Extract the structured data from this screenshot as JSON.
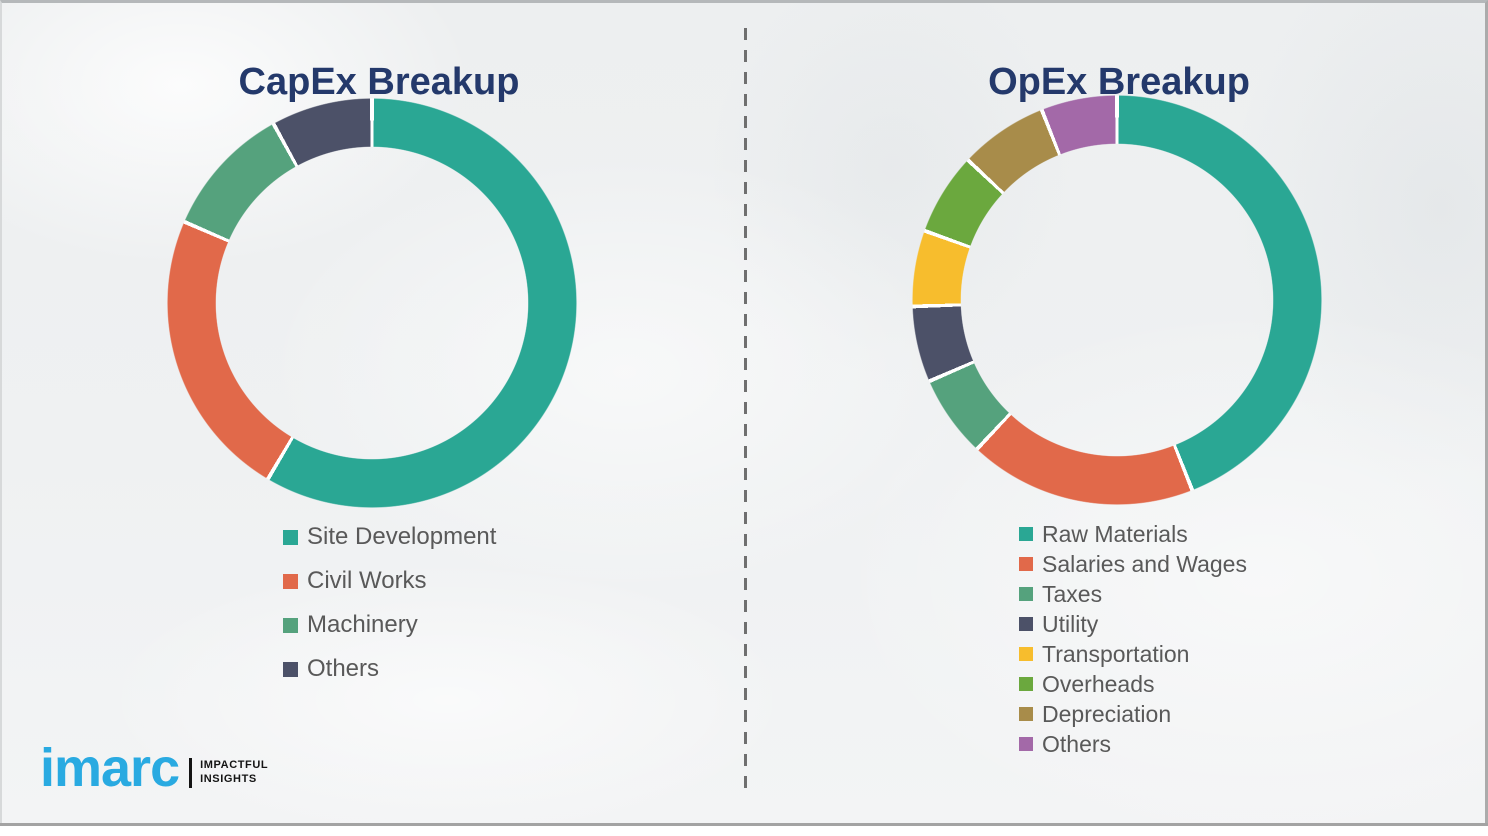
{
  "chart_data": [
    {
      "type": "pie",
      "subtype": "donut",
      "title": "CapEx Breakup",
      "labels": [
        "Site Development",
        "Civil Works",
        "Machinery",
        "Others"
      ],
      "values": [
        58.5,
        23,
        10.5,
        8
      ],
      "unit": "percent-estimated-from-arc-angles",
      "colors": [
        "#2AA794",
        "#E1694A",
        "#55A27D",
        "#4C5168"
      ],
      "start_angle_deg": 0,
      "direction": "clockwise",
      "data_labels_shown": false,
      "legend_position": "below-chart-left"
    },
    {
      "type": "pie",
      "subtype": "donut",
      "title": "OpEx Breakup",
      "labels": [
        "Raw Materials",
        "Salaries and Wages",
        "Taxes",
        "Utility",
        "Transportation",
        "Overheads",
        "Depreciation",
        "Others"
      ],
      "values": [
        44,
        18,
        6.5,
        6,
        6,
        6.5,
        7,
        6
      ],
      "unit": "percent-estimated-from-arc-angles",
      "colors": [
        "#2AA794",
        "#E1694A",
        "#55A27D",
        "#4C5168",
        "#F7BD2D",
        "#6BA83E",
        "#A88C4A",
        "#A369A8"
      ],
      "start_angle_deg": 0,
      "direction": "clockwise",
      "data_labels_shown": false,
      "legend_position": "below-chart-left"
    }
  ],
  "logo": {
    "brand": "imarc",
    "tagline": [
      "IMPACTFUL",
      "INSIGHTS"
    ],
    "brand_color": "#29AAE1"
  },
  "theme": {
    "title_color": "#24396B",
    "legend_text_color": "#595959",
    "background": "#eff1f2",
    "divider_color": "#6f6f6f",
    "segment_gap_color": "#ffffff"
  }
}
